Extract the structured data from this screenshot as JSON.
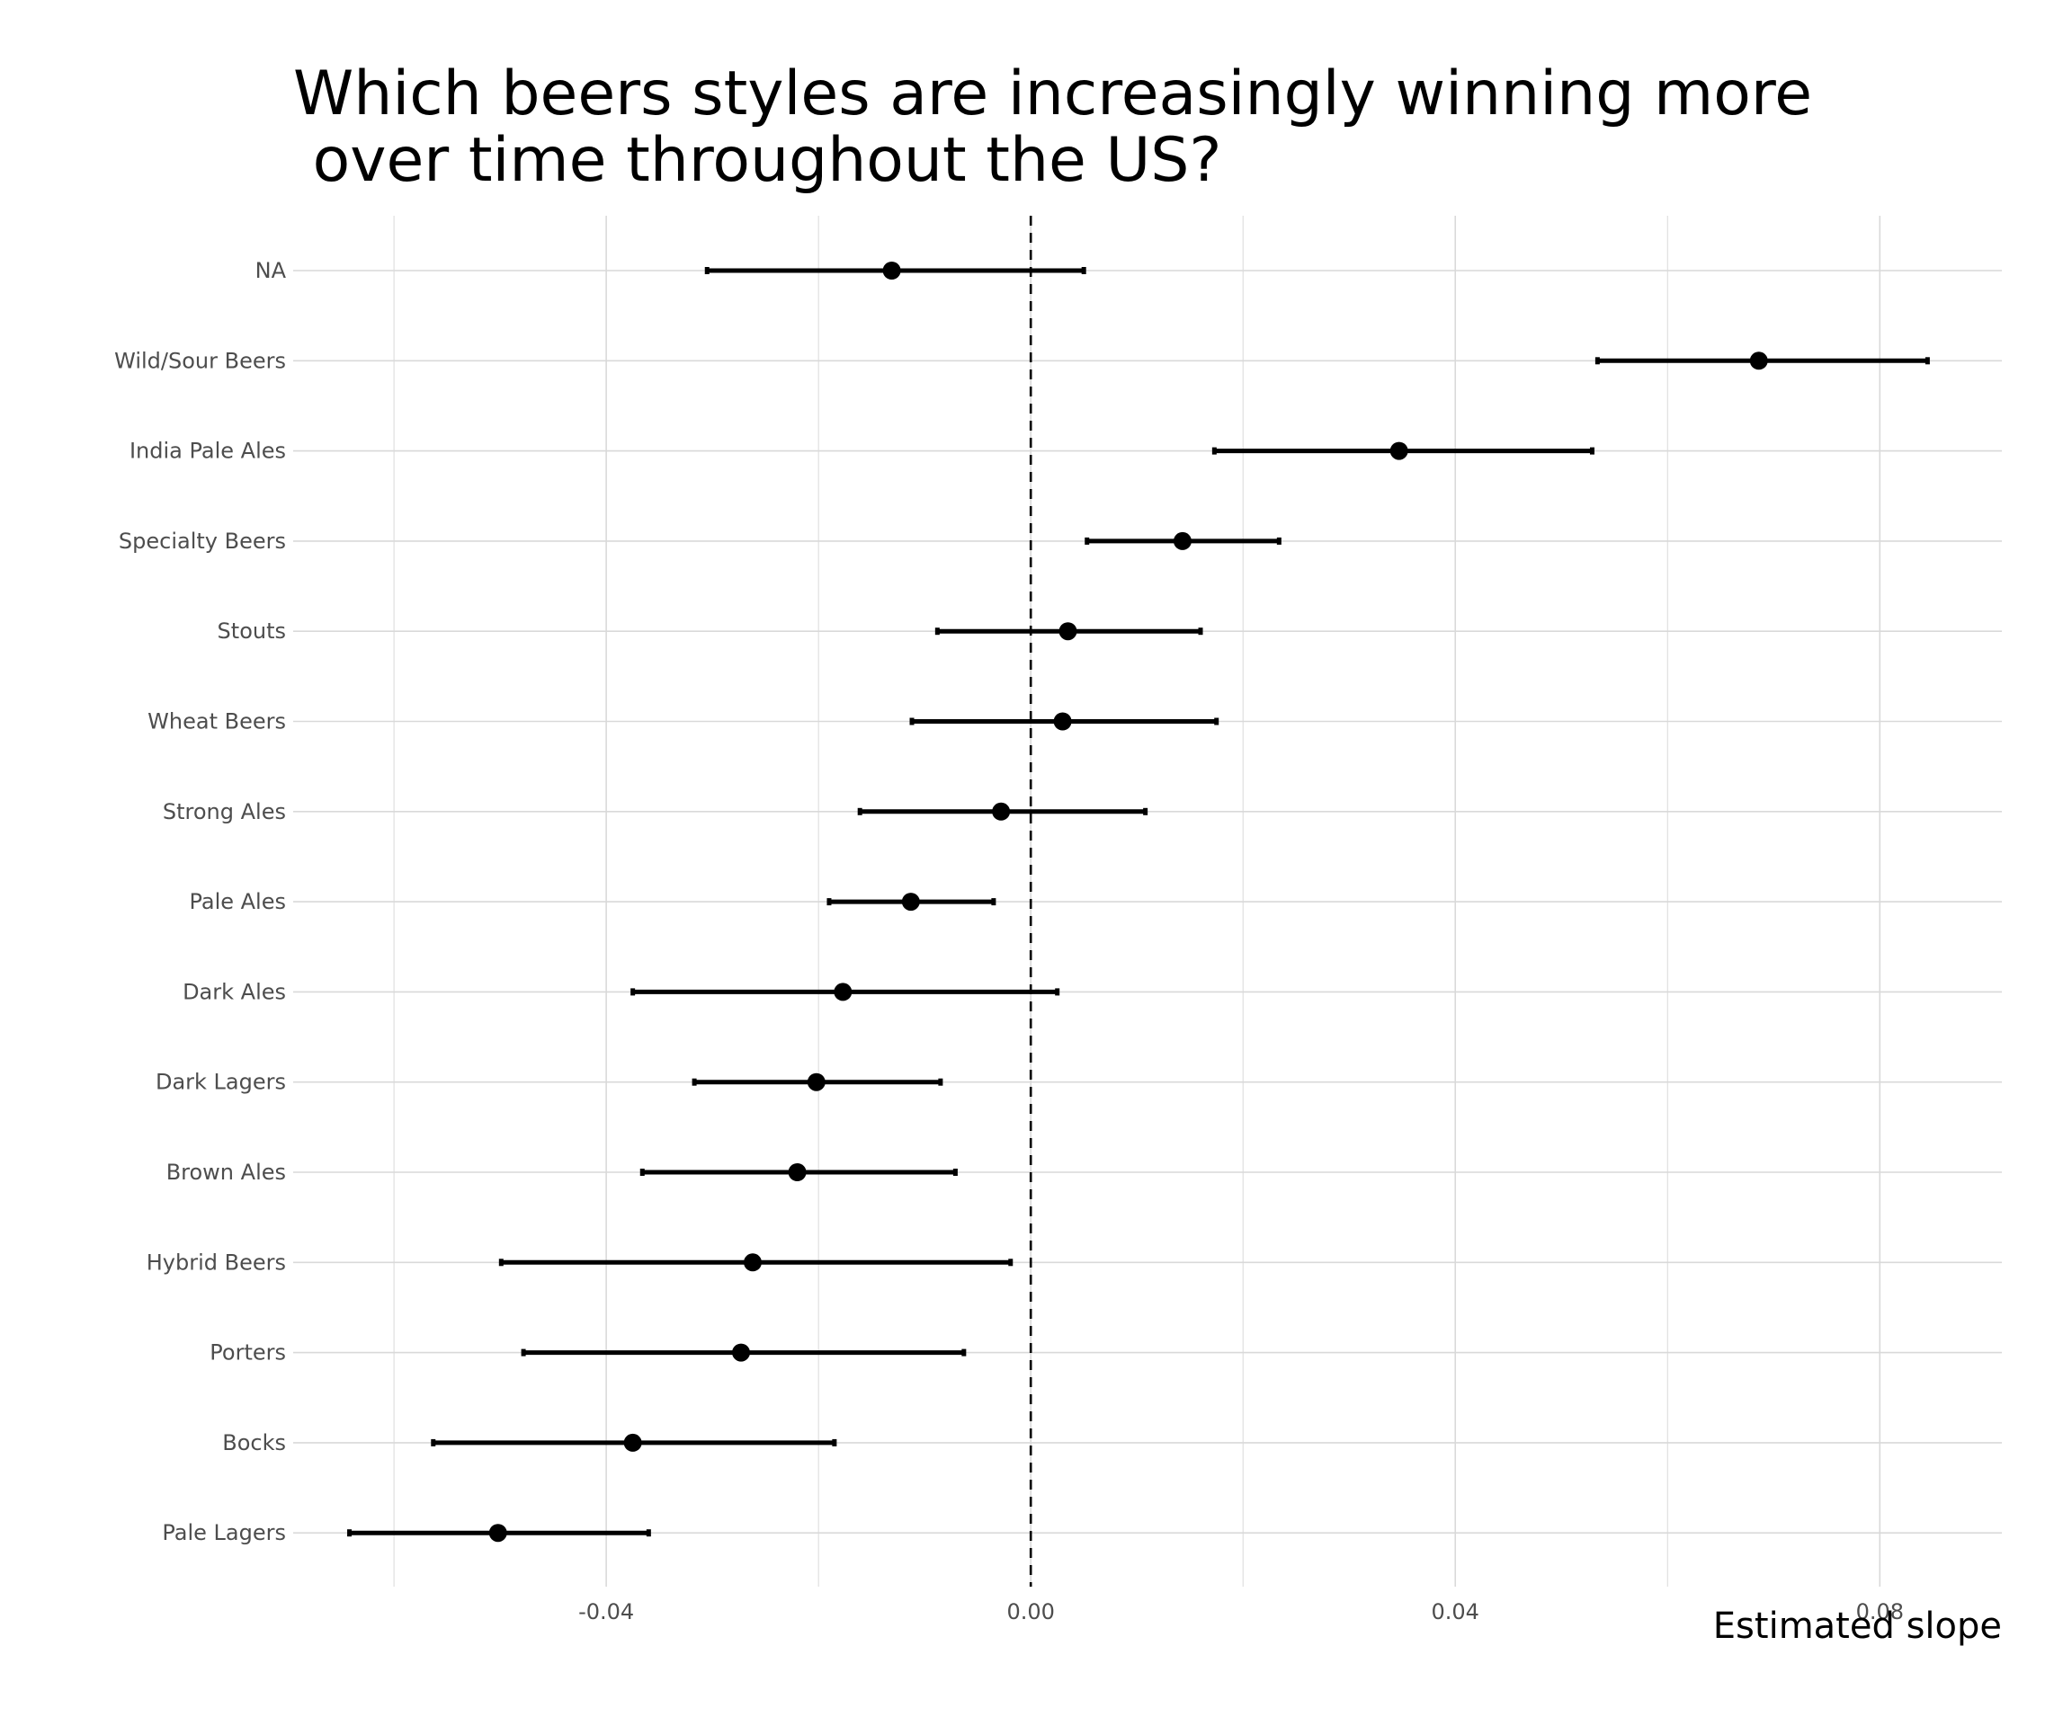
{
  "chart_data": {
    "type": "scatter",
    "subtype": "point-range (dot with error bars)",
    "title": "Which beers styles are increasingly winning more\n over time throughout the US?",
    "xlabel": "Estimated slope",
    "ylabel": "",
    "xlim": [
      -0.0695,
      0.0915
    ],
    "x_ticks": [
      "-0.04",
      "0.00",
      "0.04",
      "0.08"
    ],
    "x_tick_values": [
      -0.04,
      0.0,
      0.04,
      0.08
    ],
    "reference_line": {
      "x": 0.0,
      "style": "dashed"
    },
    "grid": true,
    "legend": "none",
    "colors": {
      "points": "#000000",
      "grid": "#d9d9d9",
      "tick_text": "#4d4d4d"
    },
    "categories": [
      "NA",
      "Wild/Sour Beers",
      "India Pale Ales",
      "Specialty Beers",
      "Stouts",
      "Wheat Beers",
      "Strong Ales",
      "Pale Ales",
      "Dark Ales",
      "Dark Lagers",
      "Brown Ales",
      "Hybrid Beers",
      "Porters",
      "Bocks",
      "Pale Lagers"
    ],
    "estimates": [
      -0.0131,
      0.0686,
      0.0347,
      0.0143,
      0.0035,
      0.003,
      -0.0028,
      -0.0113,
      -0.0177,
      -0.0202,
      -0.022,
      -0.0262,
      -0.0273,
      -0.0375,
      -0.0502
    ],
    "lower": [
      -0.0305,
      0.0534,
      0.0173,
      0.0053,
      -0.0088,
      -0.0112,
      -0.0161,
      -0.019,
      -0.0375,
      -0.0317,
      -0.0366,
      -0.0499,
      -0.0478,
      -0.0563,
      -0.0642
    ],
    "upper": [
      0.005,
      0.0845,
      0.0529,
      0.0234,
      0.016,
      0.0175,
      0.0108,
      -0.0035,
      0.0025,
      -0.0085,
      -0.0071,
      -0.0019,
      -0.0063,
      -0.0185,
      -0.036
    ]
  }
}
